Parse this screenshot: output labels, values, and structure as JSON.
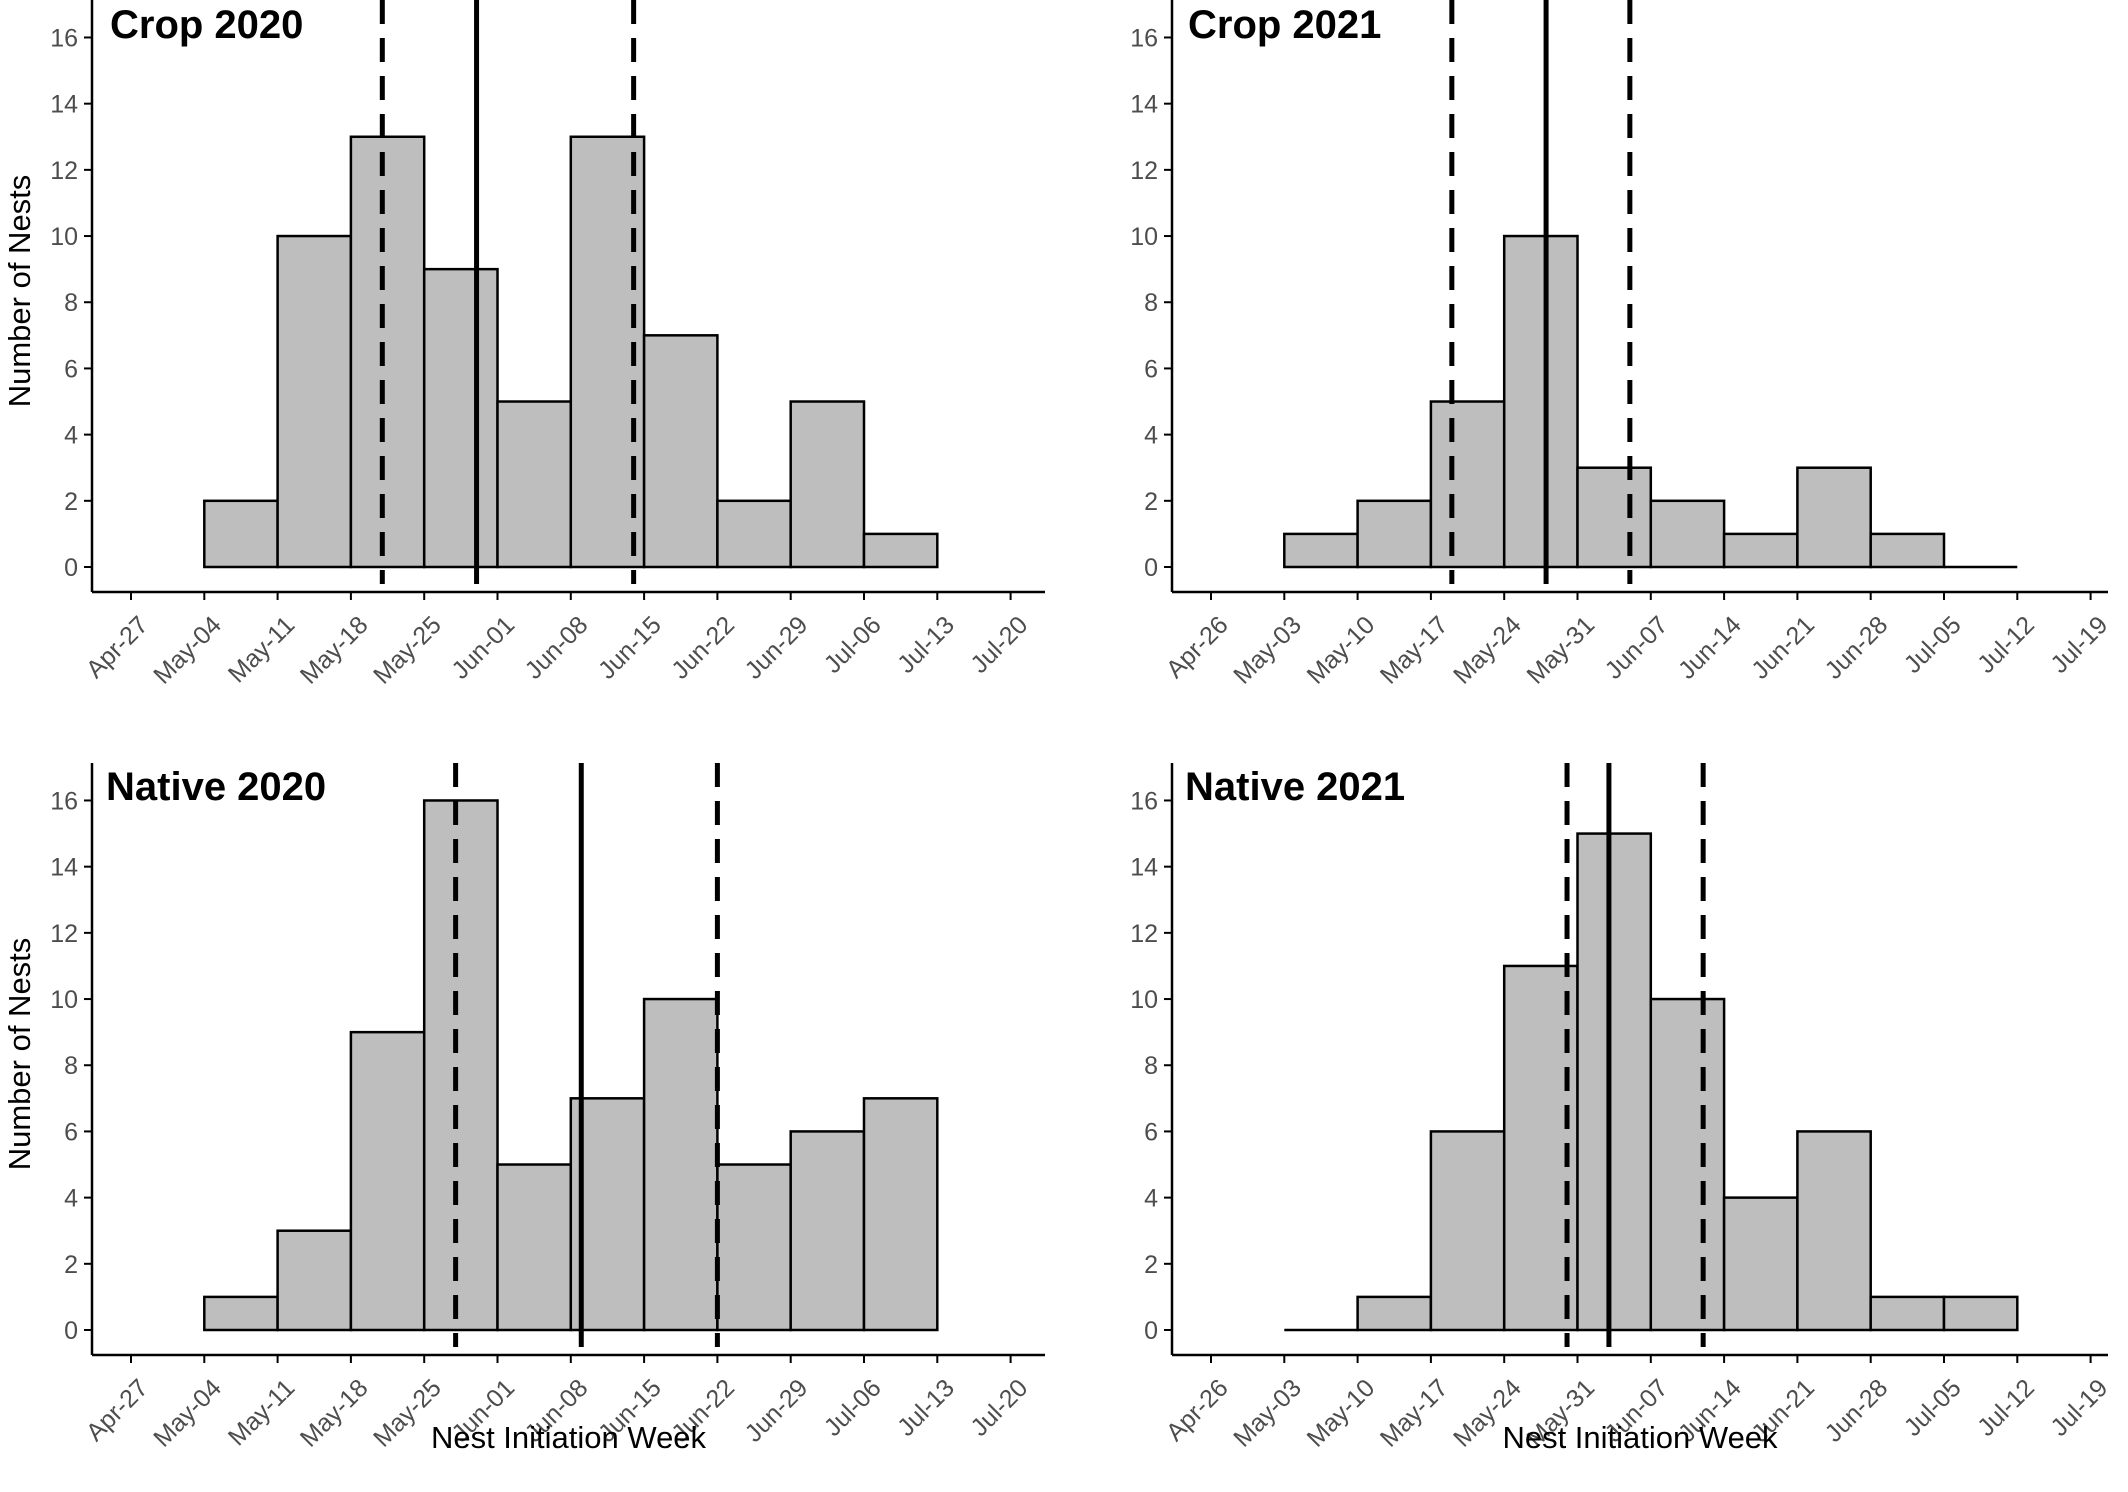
{
  "chart_data": [
    {
      "type": "bar",
      "title": "Crop 2020",
      "xlabel": "",
      "ylabel": "Number of Nests",
      "ylim": [
        0,
        16.8
      ],
      "yticks": [
        0,
        2,
        4,
        6,
        8,
        10,
        12,
        14,
        16
      ],
      "xtick_labels": [
        "Apr-27",
        "May-04",
        "May-11",
        "May-18",
        "May-25",
        "Jun-01",
        "Jun-08",
        "Jun-15",
        "Jun-22",
        "Jun-29",
        "Jul-06",
        "Jul-13",
        "Jul-20"
      ],
      "bins": [
        {
          "start": "May-04",
          "end": "May-11",
          "count": 2
        },
        {
          "start": "May-11",
          "end": "May-18",
          "count": 10
        },
        {
          "start": "May-18",
          "end": "May-25",
          "count": 13
        },
        {
          "start": "May-25",
          "end": "Jun-01",
          "count": 9
        },
        {
          "start": "Jun-01",
          "end": "Jun-08",
          "count": 5
        },
        {
          "start": "Jun-08",
          "end": "Jun-15",
          "count": 13
        },
        {
          "start": "Jun-15",
          "end": "Jun-22",
          "count": 7
        },
        {
          "start": "Jun-22",
          "end": "Jun-29",
          "count": 2
        },
        {
          "start": "Jun-29",
          "end": "Jul-06",
          "count": 5
        },
        {
          "start": "Jul-06",
          "end": "Jul-13",
          "count": 1
        }
      ],
      "vlines": [
        {
          "date": "May-21",
          "style": "dashed"
        },
        {
          "date": "May-30",
          "style": "solid"
        },
        {
          "date": "Jun-14",
          "style": "dashed"
        }
      ],
      "grid": false
    },
    {
      "type": "bar",
      "title": "Crop 2021",
      "xlabel": "",
      "ylabel": "",
      "ylim": [
        0,
        16.8
      ],
      "yticks": [
        0,
        2,
        4,
        6,
        8,
        10,
        12,
        14,
        16
      ],
      "xtick_labels": [
        "Apr-26",
        "May-03",
        "May-10",
        "May-17",
        "May-24",
        "May-31",
        "Jun-07",
        "Jun-14",
        "Jun-21",
        "Jun-28",
        "Jul-05",
        "Jul-12",
        "Jul-19"
      ],
      "bins": [
        {
          "start": "May-03",
          "end": "May-10",
          "count": 1
        },
        {
          "start": "May-10",
          "end": "May-17",
          "count": 2
        },
        {
          "start": "May-17",
          "end": "May-24",
          "count": 5
        },
        {
          "start": "May-24",
          "end": "May-31",
          "count": 10
        },
        {
          "start": "May-31",
          "end": "Jun-07",
          "count": 3
        },
        {
          "start": "Jun-07",
          "end": "Jun-14",
          "count": 2
        },
        {
          "start": "Jun-14",
          "end": "Jun-21",
          "count": 1
        },
        {
          "start": "Jun-21",
          "end": "Jun-28",
          "count": 3
        },
        {
          "start": "Jun-28",
          "end": "Jul-05",
          "count": 1
        },
        {
          "start": "Jul-05",
          "end": "Jul-12",
          "count": 0
        }
      ],
      "vlines": [
        {
          "date": "May-19",
          "style": "dashed"
        },
        {
          "date": "May-28",
          "style": "solid"
        },
        {
          "date": "Jun-05",
          "style": "dashed"
        }
      ],
      "grid": false
    },
    {
      "type": "bar",
      "title": "Native 2020",
      "xlabel": "Nest Initiation Week",
      "ylabel": "Number of Nests",
      "ylim": [
        0,
        16.8
      ],
      "yticks": [
        0,
        2,
        4,
        6,
        8,
        10,
        12,
        14,
        16
      ],
      "xtick_labels": [
        "Apr-27",
        "May-04",
        "May-11",
        "May-18",
        "May-25",
        "Jun-01",
        "Jun-08",
        "Jun-15",
        "Jun-22",
        "Jun-29",
        "Jul-06",
        "Jul-13",
        "Jul-20"
      ],
      "bins": [
        {
          "start": "May-04",
          "end": "May-11",
          "count": 1
        },
        {
          "start": "May-11",
          "end": "May-18",
          "count": 3
        },
        {
          "start": "May-18",
          "end": "May-25",
          "count": 9
        },
        {
          "start": "May-25",
          "end": "Jun-01",
          "count": 16
        },
        {
          "start": "Jun-01",
          "end": "Jun-08",
          "count": 5
        },
        {
          "start": "Jun-08",
          "end": "Jun-15",
          "count": 7
        },
        {
          "start": "Jun-15",
          "end": "Jun-22",
          "count": 10
        },
        {
          "start": "Jun-22",
          "end": "Jun-29",
          "count": 5
        },
        {
          "start": "Jun-29",
          "end": "Jul-06",
          "count": 6
        },
        {
          "start": "Jul-06",
          "end": "Jul-13",
          "count": 7
        }
      ],
      "vlines": [
        {
          "date": "May-28",
          "style": "dashed"
        },
        {
          "date": "Jun-09",
          "style": "solid"
        },
        {
          "date": "Jun-22",
          "style": "dashed"
        }
      ],
      "grid": false
    },
    {
      "type": "bar",
      "title": "Native 2021",
      "xlabel": "Nest Initiation Week",
      "ylabel": "",
      "ylim": [
        0,
        16.8
      ],
      "yticks": [
        0,
        2,
        4,
        6,
        8,
        10,
        12,
        14,
        16
      ],
      "xtick_labels": [
        "Apr-26",
        "May-03",
        "May-10",
        "May-17",
        "May-24",
        "May-31",
        "Jun-07",
        "Jun-14",
        "Jun-21",
        "Jun-28",
        "Jul-05",
        "Jul-12",
        "Jul-19"
      ],
      "bins": [
        {
          "start": "May-03",
          "end": "May-10",
          "count": 0
        },
        {
          "start": "May-10",
          "end": "May-17",
          "count": 1
        },
        {
          "start": "May-17",
          "end": "May-24",
          "count": 6
        },
        {
          "start": "May-24",
          "end": "May-31",
          "count": 11
        },
        {
          "start": "May-31",
          "end": "Jun-07",
          "count": 15
        },
        {
          "start": "Jun-07",
          "end": "Jun-14",
          "count": 10
        },
        {
          "start": "Jun-14",
          "end": "Jun-21",
          "count": 4
        },
        {
          "start": "Jun-21",
          "end": "Jun-28",
          "count": 6
        },
        {
          "start": "Jun-28",
          "end": "Jul-05",
          "count": 1
        },
        {
          "start": "Jul-05",
          "end": "Jul-12",
          "count": 1
        }
      ],
      "vlines": [
        {
          "date": "May-30",
          "style": "dashed"
        },
        {
          "date": "Jun-03",
          "style": "solid"
        },
        {
          "date": "Jun-12",
          "style": "dashed"
        }
      ],
      "grid": false
    }
  ],
  "style": {
    "bar_fill": "#bebebe",
    "bar_stroke": "#000000",
    "axis_color": "#000000",
    "tick_label_color": "#4d4d4d"
  }
}
